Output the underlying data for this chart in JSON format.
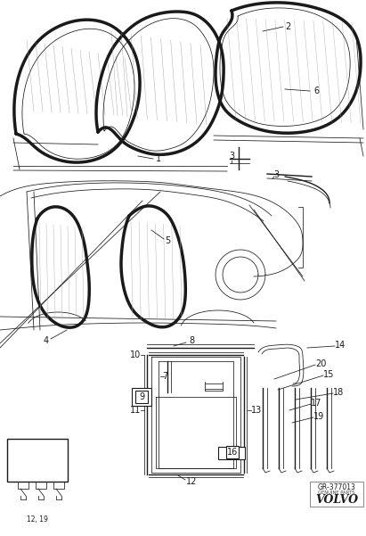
{
  "background_color": "#ffffff",
  "line_color": "#1a1a1a",
  "bold_lw": 2.5,
  "thin_lw": 0.55,
  "med_lw": 1.0,
  "label_fs": 7.0,
  "diagram_ref": "GR-377013",
  "brand": "VOLVO",
  "brand_sub": "GENUINE PARTS",
  "fig_width": 4.11,
  "fig_height": 6.01,
  "dpi": 100
}
